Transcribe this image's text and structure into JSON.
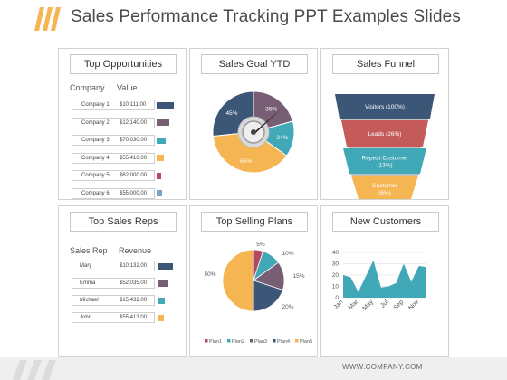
{
  "slide": {
    "title": "Sales Performance Tracking PPT Examples Slides",
    "footer_url": "WWW.COMPANY.COM"
  },
  "colors": {
    "navy": "#3c5677",
    "plum": "#775e74",
    "teal": "#41a8b7",
    "orange": "#f5b552",
    "pink": "#b34863",
    "red": "#c55a5a",
    "steel": "#7da4c4",
    "stripe": "#f5b552"
  },
  "top_opportunities": {
    "title": "Top Opportunities",
    "col_company": "Company",
    "col_value": "Value",
    "rows": [
      {
        "company": "Company 1",
        "value": "$10,111.00",
        "bar": 0.85,
        "color": "#3c5677"
      },
      {
        "company": "Company 2",
        "value": "$12,140.00",
        "bar": 0.62,
        "color": "#775e74"
      },
      {
        "company": "Company 3",
        "value": "$70,030.00",
        "bar": 0.45,
        "color": "#41a8b7"
      },
      {
        "company": "Company 4",
        "value": "$55,410.00",
        "bar": 0.35,
        "color": "#f5b552"
      },
      {
        "company": "Company 5",
        "value": "$62,000.00",
        "bar": 0.22,
        "color": "#b34863"
      },
      {
        "company": "Company 6",
        "value": "$55,000.00",
        "bar": 0.25,
        "color": "#7da4c4"
      }
    ]
  },
  "sales_goal_ytd": {
    "title": "Sales Goal YTD",
    "segments": [
      {
        "label": "45%",
        "value": 45,
        "color": "#3c5677"
      },
      {
        "label": "35%",
        "value": 35,
        "color": "#775e74"
      },
      {
        "label": "24%",
        "value": 24,
        "color": "#41a8b7"
      },
      {
        "label": "65%",
        "value": 65,
        "color": "#f5b552"
      }
    ]
  },
  "sales_funnel": {
    "title": "Sales Funnel",
    "stages": [
      {
        "label": "Visitors (100%)",
        "color": "#3c5677"
      },
      {
        "label": "Leads (26%)",
        "color": "#c55a5a"
      },
      {
        "label": "Repeat Customer\n(13%)",
        "color": "#41a8b7"
      },
      {
        "label": "Customer\n(6%)",
        "color": "#f5b552"
      }
    ]
  },
  "top_sales_reps": {
    "title": "Top Sales Reps",
    "col_rep": "Sales Rep",
    "col_revenue": "Revenue",
    "rows": [
      {
        "rep": "Mary",
        "revenue": "$10,132.00",
        "bar": 0.9,
        "color": "#3c5677"
      },
      {
        "rep": "Emma",
        "revenue": "$52,035.00",
        "bar": 0.6,
        "color": "#775e74"
      },
      {
        "rep": "Michael",
        "revenue": "$15,432.00",
        "bar": 0.4,
        "color": "#41a8b7"
      },
      {
        "rep": "John",
        "revenue": "$55,413.00",
        "bar": 0.35,
        "color": "#f5b552"
      }
    ]
  },
  "top_selling_plans": {
    "title": "Top Selling Plans"
  },
  "new_customers": {
    "title": "New Customers"
  },
  "chart_data": [
    {
      "type": "pie",
      "title": "Top Selling Plans",
      "categories": [
        "Plan1",
        "Plan2",
        "Plan3",
        "Plan4",
        "Plan5"
      ],
      "values": [
        5,
        10,
        15,
        20,
        50
      ],
      "labels": [
        "5%",
        "10%",
        "15%",
        "20%",
        "50%"
      ],
      "colors": [
        "#b34863",
        "#41a8b7",
        "#775e74",
        "#3c5677",
        "#f5b552"
      ],
      "legend": "bottom"
    },
    {
      "type": "area",
      "title": "New Customers",
      "x": [
        "Jan",
        "Feb",
        "Mar",
        "Apr",
        "May",
        "Jun",
        "Jul",
        "Aug",
        "Sep",
        "Oct",
        "Nov",
        "Dec"
      ],
      "tick_labels": [
        "Jan",
        "Mar",
        "May",
        "Jul",
        "Sep",
        "Nov"
      ],
      "values": [
        20,
        18,
        5,
        19,
        33,
        9,
        10,
        13,
        30,
        14,
        28,
        27
      ],
      "ylim": [
        0,
        40
      ],
      "yticks": [
        0,
        10,
        20,
        30,
        40
      ],
      "color": "#41a8b7",
      "grid": true
    }
  ]
}
